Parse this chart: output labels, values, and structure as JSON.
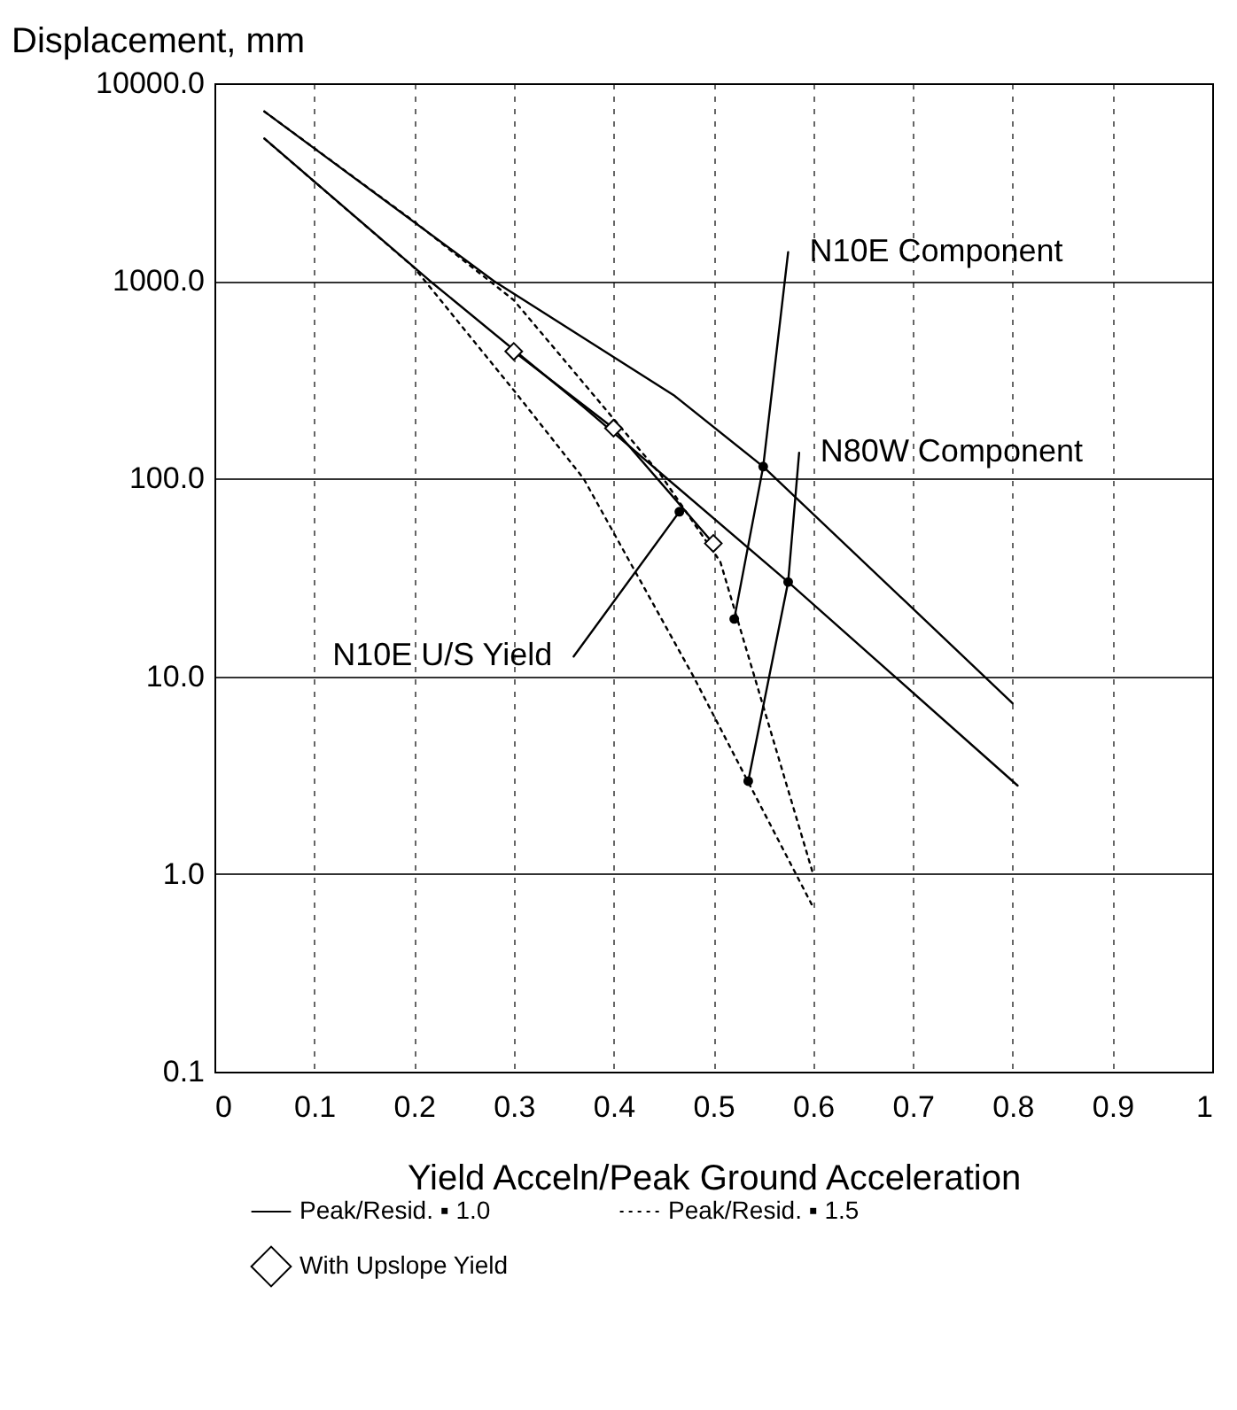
{
  "chart_data": {
    "type": "line",
    "ylabel": "Displacement, mm",
    "xlabel": "Yield Acceln/Peak Ground Acceleration",
    "log": "y",
    "grid": true,
    "legend": "bottom",
    "xlim": [
      0,
      1
    ],
    "xticks": [
      0,
      0.1,
      0.2,
      0.3,
      0.4,
      0.5,
      0.6,
      0.7,
      0.8,
      0.9,
      1
    ],
    "ylim": [
      0.1,
      10000
    ],
    "yticks": [
      0.1,
      {
        "value": 1,
        "label": "1.0"
      },
      {
        "value": 10,
        "label": "10.0"
      },
      {
        "value": 100,
        "label": "100.0"
      },
      {
        "value": 1000,
        "label": "1000.0"
      },
      {
        "value": 10000,
        "label": "10000.0"
      }
    ],
    "series": [
      {
        "name": "Peak/Resid. ▪ 1.0",
        "type": "line",
        "color": "#000000",
        "line_style": "solid",
        "marker": "none",
        "x": [
          0.05,
          0.28,
          0.46,
          0.55,
          0.7,
          0.8
        ],
        "values": [
          7200,
          1000,
          265,
          115,
          22,
          7.3
        ]
      },
      {
        "type": "line",
        "color": "#000000",
        "line_style": "solid",
        "marker": "none",
        "x": [
          0.05,
          0.216,
          0.37,
          0.575,
          0.805
        ],
        "values": [
          5250,
          1000,
          230,
          30,
          2.8
        ]
      },
      {
        "name": "Peak/Resid. ▪ 1.5",
        "type": "line",
        "color": "#000000",
        "line_style": "dotted",
        "marker": "none",
        "x": [
          0.05,
          0.2,
          0.3,
          0.37,
          0.48,
          0.6
        ],
        "values": [
          5250,
          1170,
          280,
          100,
          10,
          0.68
        ]
      },
      {
        "type": "line",
        "color": "#000000",
        "line_style": "dotted",
        "marker": "none",
        "x": [
          0.05,
          0.2,
          0.3,
          0.447,
          0.507,
          0.6
        ],
        "values": [
          7200,
          2000,
          800,
          105,
          38,
          1
        ]
      },
      {
        "name": "With Upslope Yield",
        "type": "line",
        "color": "#000000",
        "line_style": "solid",
        "marker": "diamond",
        "x": [
          0.3,
          0.4,
          0.5
        ],
        "values": [
          440,
          180,
          47
        ]
      },
      {
        "type": "scatter",
        "color": "#000000",
        "marker": "circle",
        "x": [
          0.466,
          0.521,
          0.55,
          0.535,
          0.575
        ],
        "values": [
          68,
          19.5,
          115,
          2.95,
          30
        ]
      },
      {
        "type": "line",
        "color": "#000000",
        "line_style": "solid",
        "marker": "none",
        "x": [
          0.521,
          0.55,
          0.575
        ],
        "values": [
          19.5,
          115,
          1400
        ]
      },
      {
        "type": "line",
        "color": "#000000",
        "line_style": "solid",
        "marker": "none",
        "x": [
          0.535,
          0.575,
          0.586
        ],
        "values": [
          2.95,
          30,
          135
        ]
      },
      {
        "type": "line",
        "color": "#000000",
        "line_style": "solid",
        "marker": "none",
        "x": [
          0.36,
          0.466
        ],
        "values": [
          12.6,
          68
        ]
      }
    ],
    "annotations": [
      {
        "text": "N10E Component",
        "x": 0.575,
        "y": 1400
      },
      {
        "text": "N80W Component",
        "x": 0.586,
        "y": 135
      },
      {
        "text": "N10E U/S Yield",
        "x": 0.36,
        "y": 12.6
      }
    ]
  }
}
